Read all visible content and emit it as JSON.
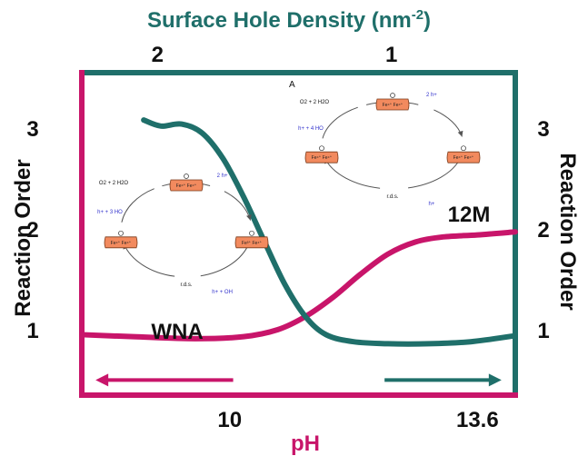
{
  "colors": {
    "teal": "#1f6f6a",
    "magenta": "#c8156a",
    "cell_fill": "#f28a5e",
    "cell_stroke": "#7a3a1a",
    "text": "#111111",
    "blue": "#3333cc"
  },
  "chart_data": {
    "type": "line",
    "top_axis": {
      "title_main": "Surface Hole Density (nm",
      "title_sup": "-2",
      "title_close": ")",
      "ticks": [
        {
          "label": "2",
          "pH": 8.95
        },
        {
          "label": "1",
          "pH": 12.35
        }
      ]
    },
    "bottom_axis": {
      "title": "pH",
      "range": [
        7.85,
        14.15
      ],
      "ticks": [
        {
          "label": "10",
          "pH": 10
        },
        {
          "label": "13.6",
          "pH": 13.6
        }
      ]
    },
    "left_axis": {
      "title": "Reaction Order",
      "range": [
        0.35,
        3.55
      ],
      "ticks": [
        "3",
        "2",
        "1"
      ]
    },
    "right_axis": {
      "title": "Reaction Order",
      "range": [
        0.35,
        3.55
      ],
      "ticks": [
        "3",
        "2",
        "1"
      ]
    },
    "series": [
      {
        "name": "WNA",
        "color_key": "magenta",
        "points": [
          [
            7.85,
            0.95
          ],
          [
            8.6,
            0.93
          ],
          [
            9.5,
            0.91
          ],
          [
            10.2,
            0.93
          ],
          [
            10.7,
            1.0
          ],
          [
            11.1,
            1.13
          ],
          [
            11.5,
            1.32
          ],
          [
            11.9,
            1.55
          ],
          [
            12.3,
            1.75
          ],
          [
            12.7,
            1.87
          ],
          [
            13.1,
            1.92
          ],
          [
            13.6,
            1.94
          ],
          [
            14.15,
            1.97
          ]
        ]
      },
      {
        "name": "12M",
        "color_key": "teal",
        "points": [
          [
            8.75,
            3.08
          ],
          [
            9.0,
            3.02
          ],
          [
            9.3,
            3.04
          ],
          [
            9.6,
            2.95
          ],
          [
            9.9,
            2.7
          ],
          [
            10.2,
            2.32
          ],
          [
            10.5,
            1.88
          ],
          [
            10.8,
            1.45
          ],
          [
            11.1,
            1.13
          ],
          [
            11.4,
            0.95
          ],
          [
            11.8,
            0.88
          ],
          [
            12.3,
            0.86
          ],
          [
            12.9,
            0.86
          ],
          [
            13.5,
            0.88
          ],
          [
            14.15,
            0.94
          ]
        ]
      }
    ],
    "arrows": [
      {
        "series": "WNA",
        "from": 10.05,
        "to": 8.05,
        "y": 0.5
      },
      {
        "series": "12M",
        "from": 12.25,
        "to": 13.95,
        "y": 0.5
      }
    ],
    "insets": [
      {
        "name": "WNA mechanism",
        "panel_label": "",
        "labels": {
          "top_left_reaction": "O2 + 2 H2O",
          "left_reaction": "h+ + 3 HO",
          "top_right": "2 h+",
          "bottom": "r.d.s.",
          "bottom_right": "h+ +  OH",
          "cell_text": [
            "Fe⁴⁺ Fe⁴⁺",
            "Fe³⁺ Fe⁴⁺",
            "Fe⁴⁺ Fe⁴⁺",
            "Fe⁴⁺ Fe⁴⁺"
          ]
        }
      },
      {
        "name": "12M mechanism",
        "panel_label": "A",
        "labels": {
          "top_left_reaction": "O2 + 2 H2O",
          "left_reaction": "h+ + 4 HO",
          "top_right": "2 h+",
          "bottom": "r.d.s.",
          "bottom_right": "h+",
          "cell_text": [
            "Fe⁴⁺ Fe⁴⁺",
            "Fe⁴⁺ Fe⁴⁺",
            "Fe⁴⁺ Fe⁴⁺",
            "Fe⁴⁺ Fe⁴⁺"
          ]
        }
      }
    ]
  }
}
